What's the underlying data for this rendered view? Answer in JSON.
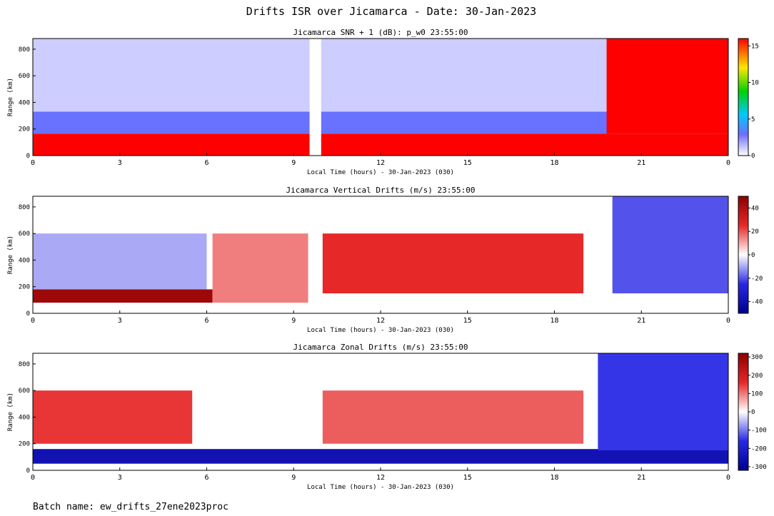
{
  "figure": {
    "title": "Drifts ISR over Jicamarca - Date: 30-Jan-2023",
    "batch_label": "Batch name: ew_drifts_27ene2023proc"
  },
  "chart_data": [
    {
      "type": "heatmap",
      "title": "Jicamarca SNR + 1 (dB): p_w0 23:55:00",
      "xlabel": "Local Time (hours) - 30-Jan-2023 (030)",
      "ylabel": "Range (km)",
      "x_ticks": [
        "0",
        "3",
        "6",
        "9",
        "12",
        "15",
        "18",
        "21",
        "0"
      ],
      "xlim": [
        0,
        24
      ],
      "y_ticks": [
        "0",
        "200",
        "400",
        "600",
        "800"
      ],
      "ylim": [
        0,
        880
      ],
      "colorbar": {
        "colormap": "white-blue-cyan-green-yellow-red",
        "ticks": [
          "0",
          "5",
          "10",
          "15"
        ],
        "range": [
          0,
          16
        ]
      },
      "bands": [
        {
          "t0": 0,
          "t1": 24,
          "h0": 0,
          "h1": 165,
          "value": 16
        },
        {
          "t0": 0,
          "t1": 24,
          "h0": 165,
          "h1": 330,
          "value": 3
        },
        {
          "t0": 0,
          "t1": 24,
          "h0": 330,
          "h1": 880,
          "value": 1
        },
        {
          "t0": 19.8,
          "t1": 24,
          "h0": 165,
          "h1": 880,
          "value": 16
        },
        {
          "t0": 9.55,
          "t1": 9.95,
          "h0": 0,
          "h1": 880,
          "value": 0
        }
      ]
    },
    {
      "type": "heatmap",
      "title": "Jicamarca Vertical Drifts (m/s) 23:55:00",
      "xlabel": "Local Time (hours) - 30-Jan-2023 (030)",
      "ylabel": "Range (km)",
      "x_ticks": [
        "0",
        "3",
        "6",
        "9",
        "12",
        "15",
        "18",
        "21",
        "0"
      ],
      "xlim": [
        0,
        24
      ],
      "y_ticks": [
        "0",
        "200",
        "400",
        "600",
        "800"
      ],
      "ylim": [
        0,
        880
      ],
      "colorbar": {
        "colormap": "blue-white-red",
        "ticks": [
          "-40",
          "-20",
          "0",
          "20",
          "40"
        ],
        "range": [
          -50,
          50
        ]
      },
      "bands": [
        {
          "t0": 0,
          "t1": 6.2,
          "h0": 80,
          "h1": 180,
          "value": 45
        },
        {
          "t0": 6.2,
          "t1": 9.5,
          "h0": 80,
          "h1": 600,
          "value": 15
        },
        {
          "t0": 10,
          "t1": 19,
          "h0": 150,
          "h1": 600,
          "value": 25
        },
        {
          "t0": 0,
          "t1": 6,
          "h0": 180,
          "h1": 600,
          "value": -10
        },
        {
          "t0": 20,
          "t1": 24,
          "h0": 150,
          "h1": 880,
          "value": -20
        }
      ]
    },
    {
      "type": "heatmap",
      "title": "Jicamarca Zonal Drifts (m/s) 23:55:00",
      "xlabel": "Local Time (hours) - 30-Jan-2023 (030)",
      "ylabel": "Range (km)",
      "x_ticks": [
        "0",
        "3",
        "6",
        "9",
        "12",
        "15",
        "18",
        "21",
        "0"
      ],
      "xlim": [
        0,
        24
      ],
      "y_ticks": [
        "0",
        "200",
        "400",
        "600",
        "800"
      ],
      "ylim": [
        0,
        880
      ],
      "colorbar": {
        "colormap": "blue-white-red",
        "ticks": [
          "-300",
          "-200",
          "-100",
          "0",
          "100",
          "200",
          "300"
        ],
        "range": [
          -320,
          320
        ]
      },
      "bands": [
        {
          "t0": 0,
          "t1": 24,
          "h0": 50,
          "h1": 160,
          "value": -250
        },
        {
          "t0": 0,
          "t1": 5.5,
          "h0": 200,
          "h1": 600,
          "value": 150
        },
        {
          "t0": 10,
          "t1": 19,
          "h0": 200,
          "h1": 600,
          "value": 120
        },
        {
          "t0": 19.5,
          "t1": 24,
          "h0": 150,
          "h1": 880,
          "value": -150
        }
      ]
    }
  ]
}
